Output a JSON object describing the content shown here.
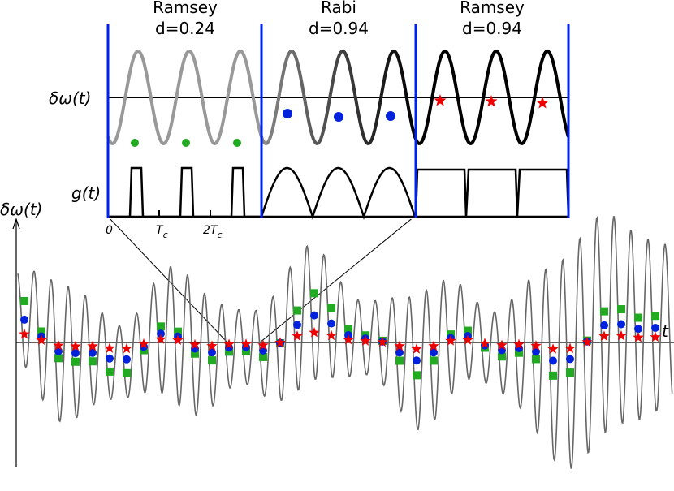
{
  "inset": {
    "panels": [
      {
        "method": "Ramsey",
        "label": "d=0.24"
      },
      {
        "method": "Rabi",
        "label": "d=0.94"
      },
      {
        "method": "Ramsey",
        "label": "d=0.94"
      }
    ],
    "top_axis_label": "δω(t)",
    "bottom_axis_label": "g(t)",
    "time_ticks": [
      {
        "main": "0"
      },
      {
        "main": "T",
        "sub": "c"
      },
      {
        "prefix": "2",
        "main": "T",
        "sub": "c"
      }
    ]
  },
  "main": {
    "y_axis_label": "δω(t)",
    "x_axis_label": "t"
  }
}
